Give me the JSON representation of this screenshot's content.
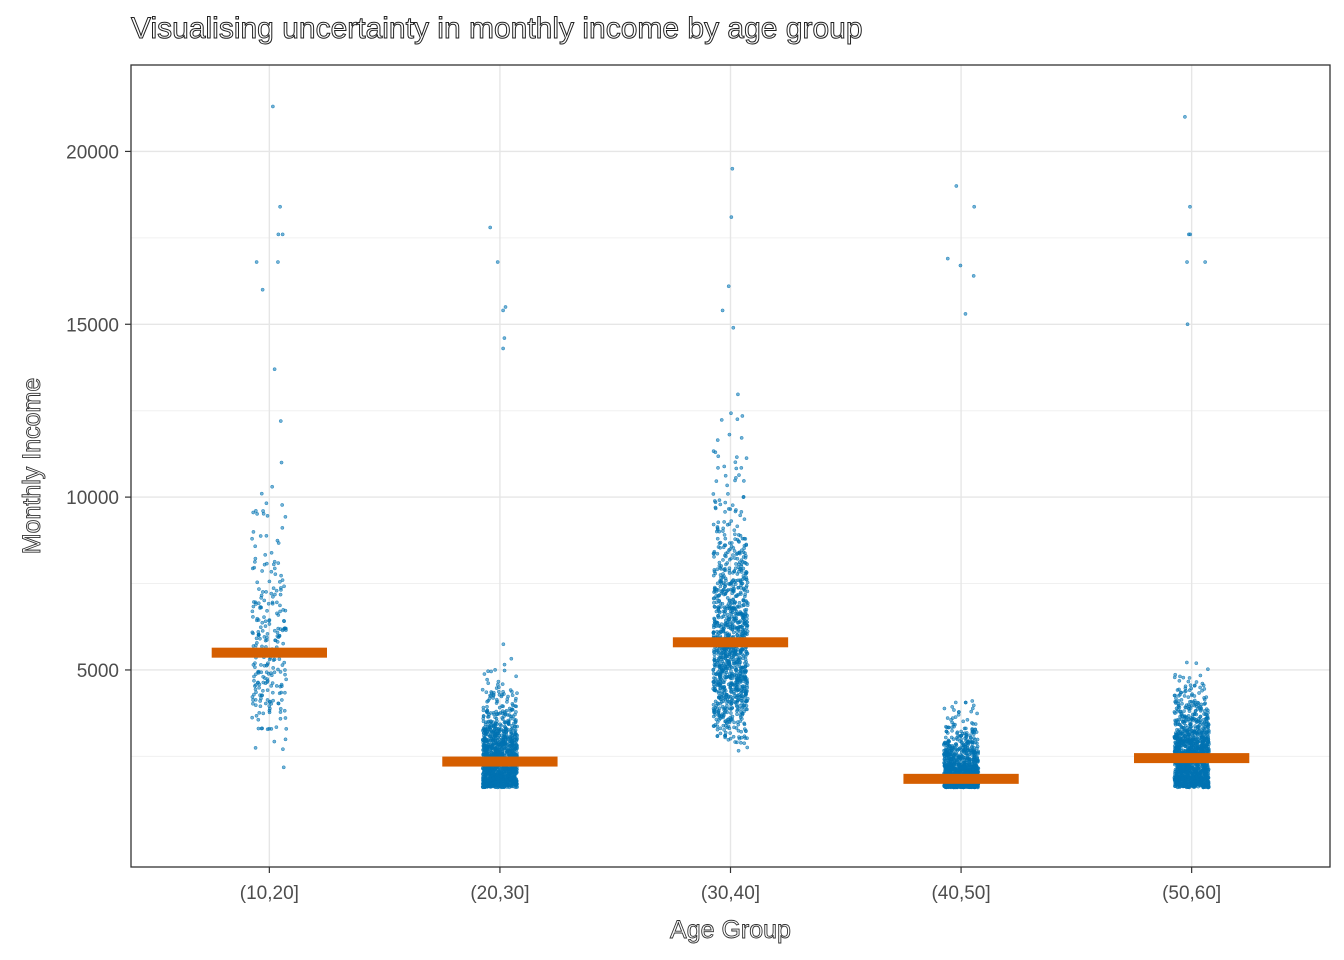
{
  "chart_data": {
    "type": "scatter",
    "subtype": "jittered strip plot with median bars",
    "title": "Visualising uncertainty in monthly income by age group",
    "xlabel": "Age Group",
    "ylabel": "Monthly Income",
    "categories": [
      "(10,20]",
      "(20,30]",
      "(30,40]",
      "(40,50]",
      "(50,60]"
    ],
    "ylim": [
      -700,
      22500
    ],
    "yticks": [
      5000,
      10000,
      15000,
      20000
    ],
    "y_tick_labels": [
      "5000",
      "10000",
      "15000",
      "20000"
    ],
    "grid": true,
    "legend": "none",
    "point_color": "#0072B2",
    "median_color": "#D55E00",
    "series": [
      {
        "category": "(10,20]",
        "median": 5500,
        "min": 1700,
        "max": 21300,
        "points": 250,
        "outliers": [
          21300,
          18400,
          17600,
          17600,
          16800,
          16800,
          16000,
          13700,
          12200,
          11000,
          10300,
          10100
        ]
      },
      {
        "category": "(20,30]",
        "median": 2350,
        "min": 1600,
        "max": 17800,
        "points": 1300,
        "outliers": [
          17800,
          16800,
          15500,
          15400,
          14600,
          14300
        ]
      },
      {
        "category": "(30,40]",
        "median": 5800,
        "min": 1600,
        "max": 19500,
        "points": 1100,
        "outliers": [
          19500,
          18100,
          16100,
          15400,
          14900
        ]
      },
      {
        "category": "(40,50]",
        "median": 1850,
        "min": 1600,
        "max": 19000,
        "points": 1500,
        "outliers": [
          19000,
          18400,
          16900,
          16700,
          16400,
          15300
        ]
      },
      {
        "category": "(50,60]",
        "median": 2450,
        "min": 1600,
        "max": 21000,
        "points": 1300,
        "outliers": [
          21000,
          18400,
          17600,
          17600,
          16800,
          16800,
          15000
        ]
      }
    ]
  }
}
